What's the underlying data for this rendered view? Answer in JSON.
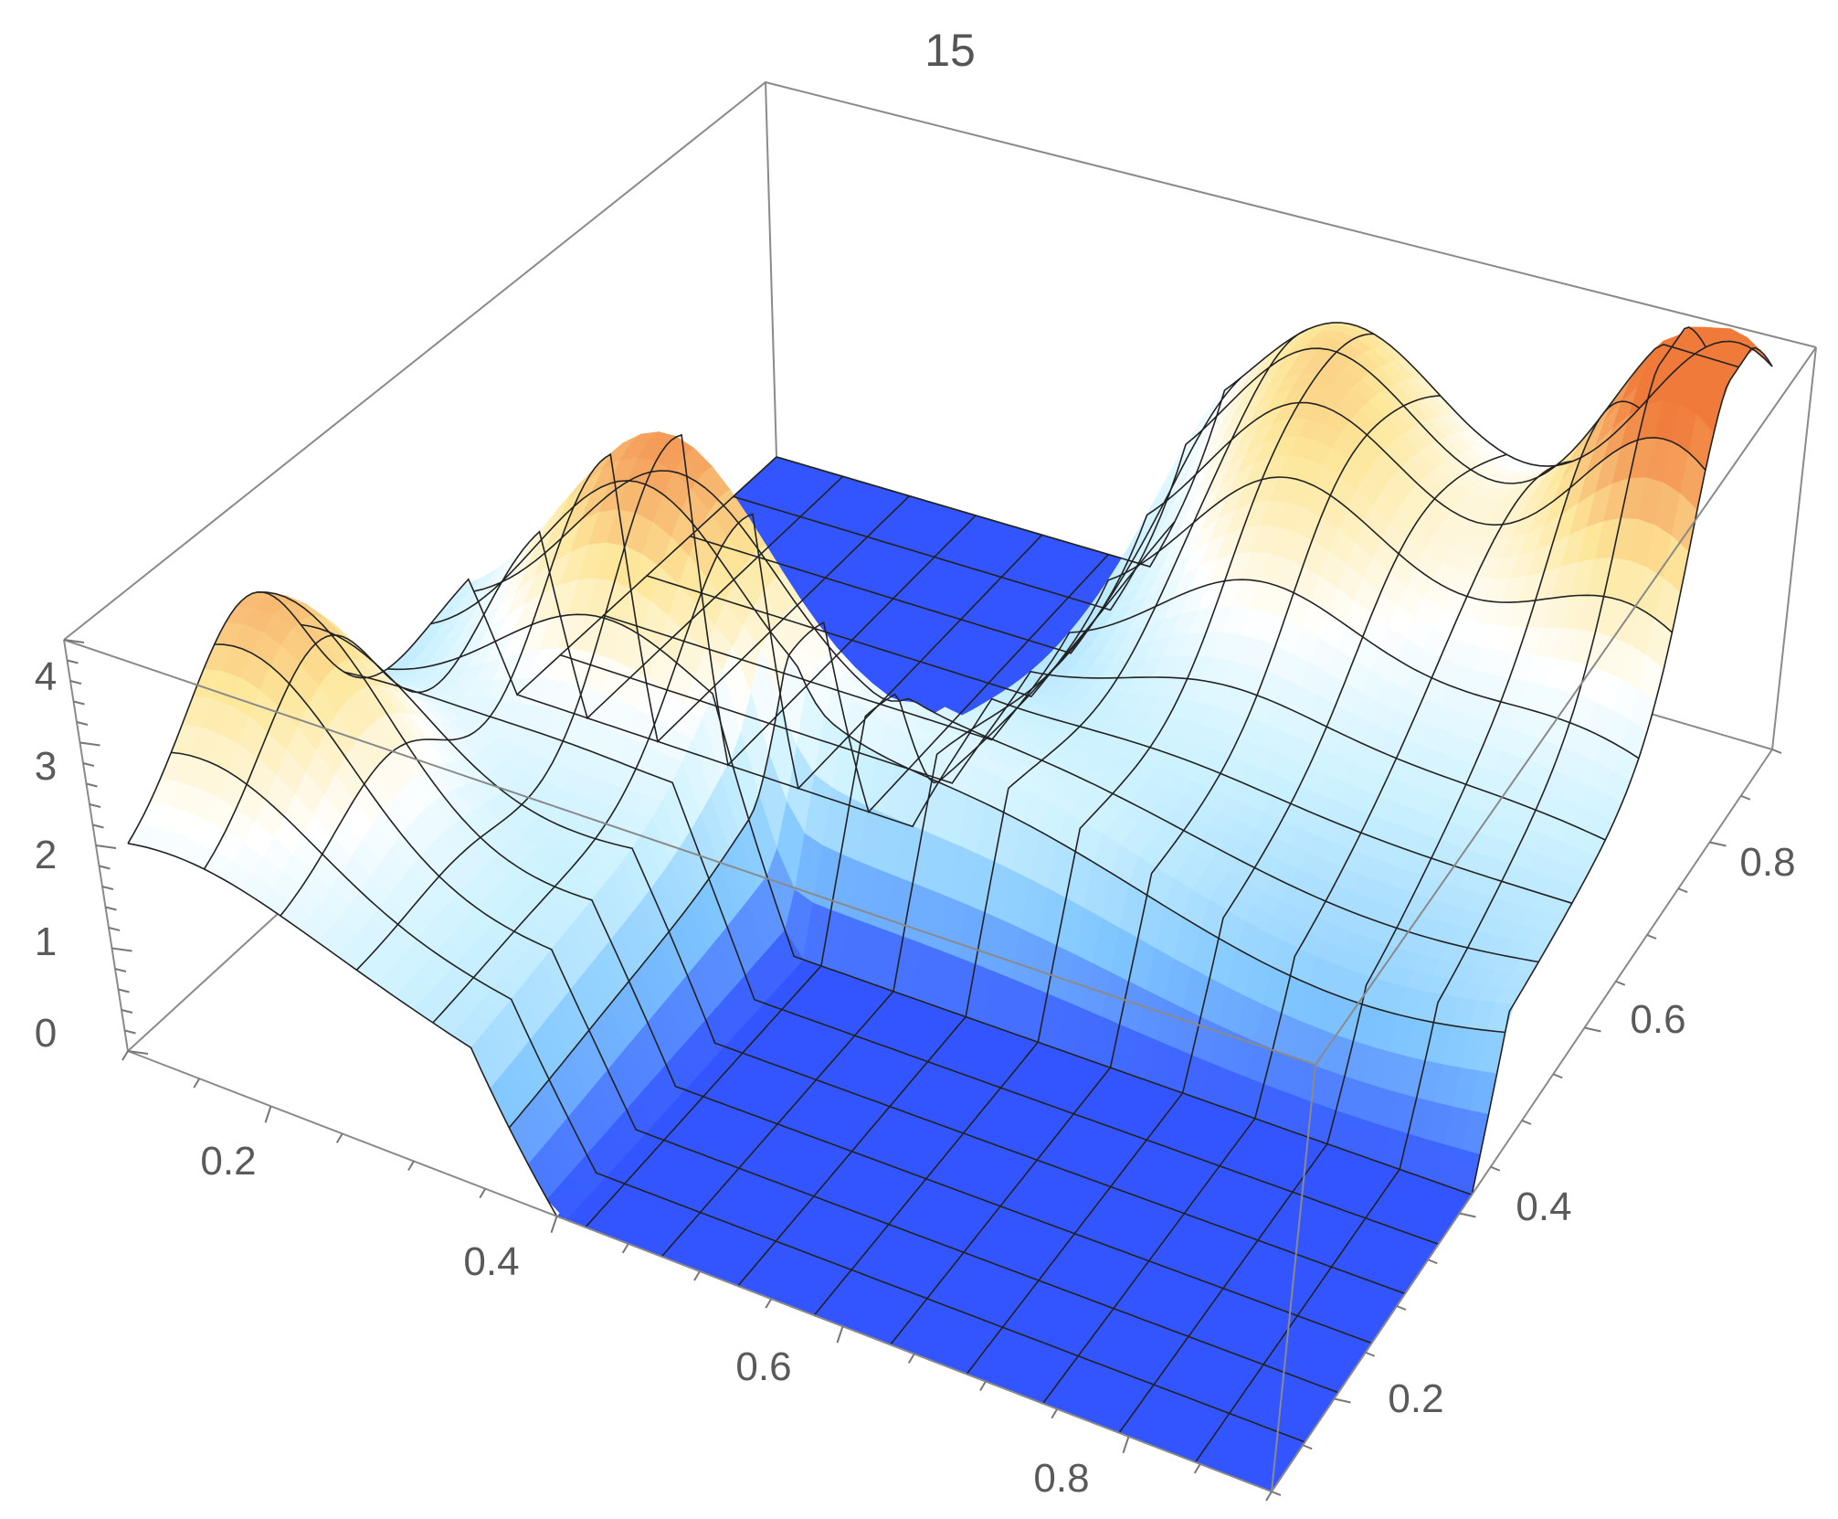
{
  "chart_data": {
    "type": "surface3d",
    "title": "15",
    "xlabel": "",
    "ylabel": "",
    "zlabel": "",
    "xlim": [
      0.1,
      0.9
    ],
    "ylim": [
      0.1,
      0.9
    ],
    "zlim": [
      0,
      4
    ],
    "x_ticks": [
      "0.2",
      "0.4",
      "0.6",
      "0.8"
    ],
    "y_ticks": [
      "0.2",
      "0.4",
      "0.6",
      "0.8"
    ],
    "z_ticks": [
      "0",
      "1",
      "2",
      "3",
      "4"
    ],
    "mesh_lines": 15,
    "colors": {
      "low": "#3355ff",
      "mid_low": "#bfefff",
      "mid": "#ffffff",
      "mid_high": "#fde79a",
      "high": "#f07a3a",
      "mesh": "#222222",
      "box": "#8a8a8a"
    },
    "flat_regions": [
      {
        "x": [
          0.4,
          0.9
        ],
        "y": [
          0.1,
          0.42
        ],
        "z": 0
      },
      {
        "x": [
          0.1,
          0.4
        ],
        "y": [
          0.58,
          0.9
        ],
        "z": 0
      }
    ],
    "peaks": [
      {
        "x": 0.12,
        "y": 0.25,
        "z": 3.6
      },
      {
        "x": 0.25,
        "y": 0.5,
        "z": 3.9
      },
      {
        "x": 0.88,
        "y": 0.85,
        "z": 4.2
      },
      {
        "x": 0.6,
        "y": 0.75,
        "z": 2.8
      },
      {
        "x": 0.55,
        "y": 0.88,
        "z": 3.0
      }
    ]
  }
}
